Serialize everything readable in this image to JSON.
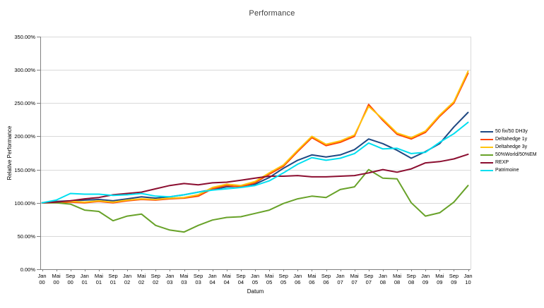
{
  "title": "Performance",
  "axes": {
    "x_title": "Datum",
    "y_title": "Relative Performance"
  },
  "style": {
    "grid_color": "#D9D9D9",
    "axis_color": "#808080",
    "text_color": "#000000",
    "title_color": "#3f3f3f",
    "background": "#ffffff"
  },
  "chart_data": {
    "type": "line",
    "title": "Performance",
    "xlabel": "Datum",
    "ylabel": "Relative Performance",
    "ylim": [
      0,
      350
    ],
    "ytick_step": 50,
    "ytick_labels": [
      "0.00%",
      "50.00%",
      "100.00%",
      "150.00%",
      "200.00%",
      "250.00%",
      "300.00%",
      "350.00%"
    ],
    "grid": true,
    "legend_position": "right",
    "categories": [
      "Jan 00",
      "Mai 00",
      "Sep 00",
      "Jan 01",
      "Mai 01",
      "Sep 01",
      "Jan 02",
      "Mai 02",
      "Sep 02",
      "Jan 03",
      "Mai 03",
      "Sep 03",
      "Jan 04",
      "Mai 04",
      "Sep 04",
      "Jan 05",
      "Mai 05",
      "Sep 05",
      "Jan 06",
      "Mai 06",
      "Sep 06",
      "Jan 07",
      "Mai 07",
      "Sep 07",
      "Jan 08",
      "Mai 08",
      "Sep 08",
      "Jan 09",
      "Mai 09",
      "Sep 09",
      "Jan 10"
    ],
    "series": [
      {
        "name": "50 fix/50 DH3y",
        "color": "#1F4882",
        "values": [
          100,
          102,
          103,
          104,
          105,
          103,
          106,
          109,
          107,
          109,
          112,
          116,
          120,
          124,
          125,
          128,
          138,
          152,
          164,
          172,
          169,
          172,
          180,
          196,
          189,
          179,
          167,
          177,
          189,
          214,
          236
        ]
      },
      {
        "name": "Deltahedge 1y",
        "color": "#FF4606",
        "values": [
          100,
          100,
          101,
          100,
          102,
          100,
          103,
          105,
          104,
          106,
          107,
          110,
          121,
          126,
          124,
          130,
          143,
          155,
          177,
          198,
          186,
          191,
          200,
          248,
          224,
          203,
          196,
          206,
          230,
          250,
          295
        ]
      },
      {
        "name": "Deltahedge 3y",
        "color": "#FFC40D",
        "values": [
          100,
          101,
          102,
          101,
          103,
          101,
          104,
          106,
          105,
          107,
          108,
          112,
          123,
          128,
          126,
          132,
          145,
          157,
          179,
          200,
          188,
          193,
          202,
          245,
          226,
          205,
          198,
          208,
          232,
          252,
          298
        ]
      },
      {
        "name": "50%World/50%EM",
        "color": "#68A229",
        "values": [
          100,
          100,
          98,
          89,
          87,
          73,
          80,
          83,
          66,
          59,
          56,
          66,
          74,
          78,
          79,
          84,
          89,
          99,
          106,
          110,
          108,
          120,
          124,
          150,
          137,
          136,
          100,
          80,
          85,
          101,
          126
        ]
      },
      {
        "name": "REXP",
        "color": "#8B0E30",
        "values": [
          100,
          101,
          103,
          106,
          108,
          112,
          114,
          116,
          121,
          126,
          129,
          127,
          130,
          131,
          134,
          137,
          140,
          140,
          141,
          139,
          139,
          140,
          141,
          145,
          150,
          146,
          151,
          160,
          162,
          166,
          173
        ]
      },
      {
        "name": "Patrimoine",
        "color": "#00DFF0",
        "values": [
          100,
          104,
          114,
          113,
          113,
          111,
          112,
          114,
          110,
          109,
          112,
          116,
          119,
          121,
          123,
          126,
          133,
          145,
          158,
          168,
          164,
          167,
          174,
          190,
          181,
          182,
          174,
          176,
          191,
          204,
          221
        ]
      }
    ]
  }
}
